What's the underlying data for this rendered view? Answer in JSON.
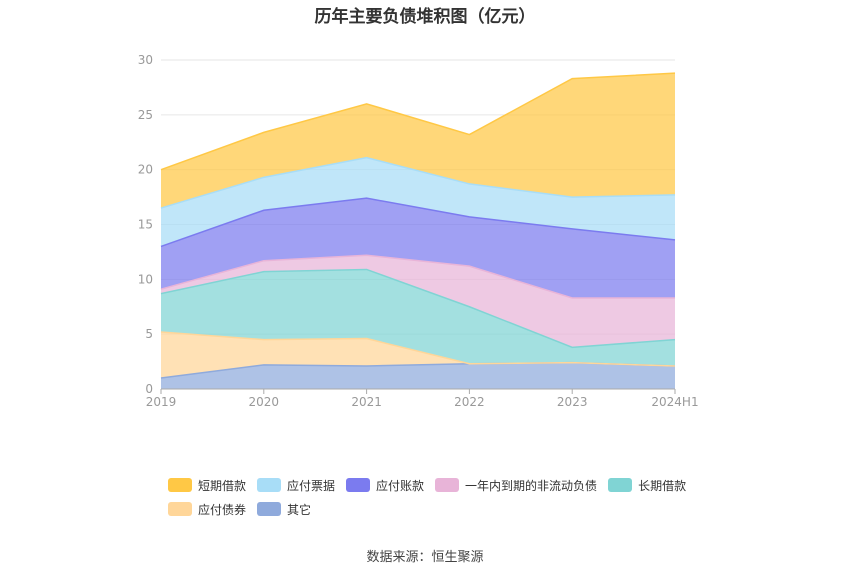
{
  "chart_data": {
    "type": "area",
    "stacked": true,
    "title": "历年主要负债堆积图（亿元）",
    "source": "数据来源：恒生聚源",
    "categories": [
      "2019",
      "2020",
      "2021",
      "2022",
      "2023",
      "2024H1"
    ],
    "ylim": [
      0,
      30
    ],
    "yticks": [
      "0",
      "5",
      "10",
      "15",
      "20",
      "25",
      "30"
    ],
    "grid": true,
    "legend_position": "bottom",
    "series": [
      {
        "name": "其它",
        "color": "#8FAADC",
        "values": [
          1.0,
          2.2,
          2.1,
          2.3,
          2.4,
          2.1
        ]
      },
      {
        "name": "应付债券",
        "color": "#FFD699",
        "values": [
          4.2,
          2.3,
          2.5,
          0.0,
          0.0,
          0.0
        ]
      },
      {
        "name": "长期借款",
        "color": "#80D4D4",
        "values": [
          3.5,
          6.2,
          6.3,
          5.2,
          1.4,
          2.4
        ]
      },
      {
        "name": "一年内到期的非流动负债",
        "color": "#E8B4D8",
        "values": [
          0.4,
          1.0,
          1.3,
          3.7,
          4.5,
          3.8
        ]
      },
      {
        "name": "应付账款",
        "color": "#7B7BEF",
        "values": [
          3.9,
          4.6,
          5.2,
          4.5,
          6.3,
          5.3
        ]
      },
      {
        "name": "应付票据",
        "color": "#A8DDF7",
        "values": [
          3.5,
          3.0,
          3.7,
          3.0,
          2.9,
          4.1
        ]
      },
      {
        "name": "短期借款",
        "color": "#FFC845",
        "values": [
          3.5,
          4.1,
          4.9,
          4.5,
          10.8,
          11.1
        ]
      }
    ]
  },
  "legend": {
    "row1": [
      {
        "label": "短期借款",
        "color": "#FFC845"
      },
      {
        "label": "应付票据",
        "color": "#A8DDF7"
      },
      {
        "label": "应付账款",
        "color": "#7B7BEF"
      },
      {
        "label": "一年内到期的非流动负债",
        "color": "#E8B4D8"
      },
      {
        "label": "长期借款",
        "color": "#80D4D4"
      }
    ],
    "row2": [
      {
        "label": "应付债券",
        "color": "#FFD699"
      },
      {
        "label": "其它",
        "color": "#8FAADC"
      }
    ]
  }
}
